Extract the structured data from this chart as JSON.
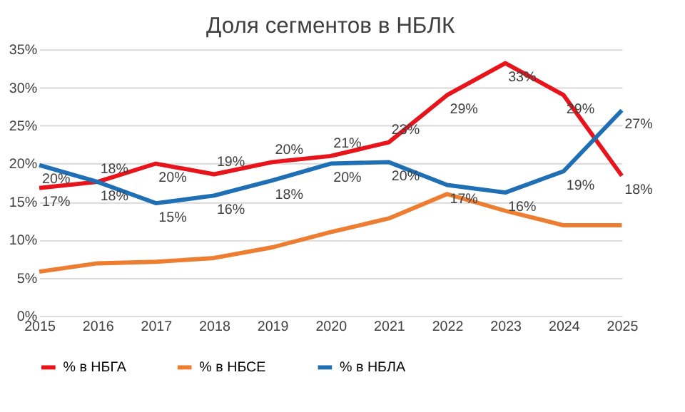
{
  "chart_data": {
    "type": "line",
    "title": "Доля сегментов в НБЛК",
    "categories": [
      "2015",
      "2016",
      "2017",
      "2018",
      "2019",
      "2020",
      "2021",
      "2022",
      "2023",
      "2024",
      "2025"
    ],
    "series": [
      {
        "name": "% в НБГА",
        "color": "#e8141c",
        "values": [
          16.8,
          17.6,
          20.0,
          18.6,
          20.2,
          21.0,
          22.8,
          29.0,
          33.2,
          29.0,
          18.4
        ],
        "value_labels": [
          "17%",
          "18%",
          "20%",
          "19%",
          "20%",
          "21%",
          "23%",
          "29%",
          "33%",
          "29%",
          "18%"
        ]
      },
      {
        "name": "% в НБСЕ",
        "color": "#ed7d31",
        "values": [
          5.8,
          6.9,
          7.1,
          7.6,
          9.0,
          11.0,
          12.8,
          16.0,
          13.8,
          11.9,
          11.9
        ]
      },
      {
        "name": "% в НБЛА",
        "color": "#1f6fb5",
        "values": [
          19.8,
          17.6,
          14.8,
          15.8,
          17.8,
          20.0,
          20.2,
          17.2,
          16.2,
          19.0,
          27.0
        ],
        "value_labels": [
          "20%",
          "18%",
          "15%",
          "16%",
          "18%",
          "20%",
          "20%",
          "17%",
          "16%",
          "19%",
          "27%"
        ]
      }
    ],
    "ylim": [
      0,
      35
    ],
    "yticks": [
      {
        "value": 0,
        "label": "0%"
      },
      {
        "value": 5,
        "label": "5%"
      },
      {
        "value": 10,
        "label": "10%"
      },
      {
        "value": 15,
        "label": "15%"
      },
      {
        "value": 20,
        "label": "20%"
      },
      {
        "value": 25,
        "label": "25%"
      },
      {
        "value": 30,
        "label": "30%"
      },
      {
        "value": 35,
        "label": "35%"
      }
    ],
    "grid": "y",
    "legend": "bottom",
    "marker": "none",
    "line_style": "solid"
  }
}
